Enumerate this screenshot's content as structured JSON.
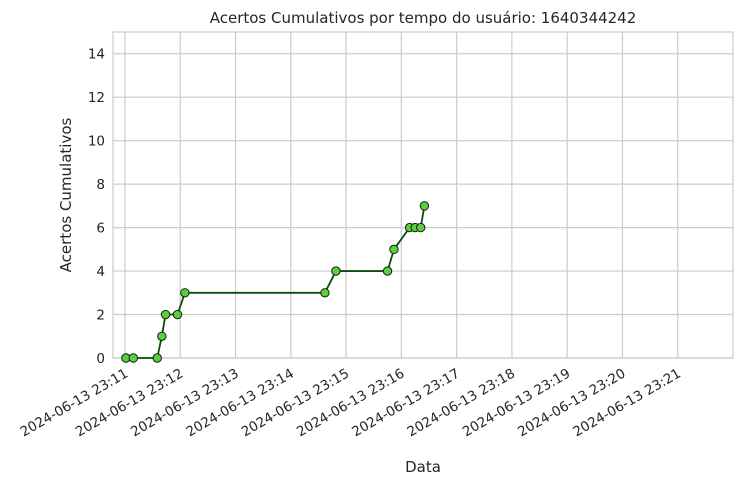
{
  "chart_data": {
    "type": "line",
    "title": "Acertos Cumulativos por tempo do usuário: 1640344242",
    "xlabel": "Data",
    "ylabel": "Acertos Cumulativos",
    "ylim": [
      0,
      15
    ],
    "yticks": [
      0,
      2,
      4,
      6,
      8,
      10,
      12,
      14
    ],
    "xlim": [
      "2024-06-13 23:10:47",
      "2024-06-13 23:22:00"
    ],
    "xticks": [
      "2024-06-13 23:11",
      "2024-06-13 23:12",
      "2024-06-13 23:13",
      "2024-06-13 23:14",
      "2024-06-13 23:15",
      "2024-06-13 23:16",
      "2024-06-13 23:17",
      "2024-06-13 23:18",
      "2024-06-13 23:19",
      "2024-06-13 23:20",
      "2024-06-13 23:21"
    ],
    "grid": true,
    "series": [
      {
        "line_color": "#0b4d0b",
        "marker_color": "#5ad13a",
        "marker_edge": "#1a1a1a",
        "points": [
          {
            "x": "2024-06-13 23:11:01",
            "y": 0
          },
          {
            "x": "2024-06-13 23:11:09",
            "y": 0
          },
          {
            "x": "2024-06-13 23:11:35",
            "y": 0
          },
          {
            "x": "2024-06-13 23:11:40",
            "y": 1
          },
          {
            "x": "2024-06-13 23:11:44",
            "y": 2
          },
          {
            "x": "2024-06-13 23:11:57",
            "y": 2
          },
          {
            "x": "2024-06-13 23:12:05",
            "y": 3
          },
          {
            "x": "2024-06-13 23:14:37",
            "y": 3
          },
          {
            "x": "2024-06-13 23:14:49",
            "y": 4
          },
          {
            "x": "2024-06-13 23:15:45",
            "y": 4
          },
          {
            "x": "2024-06-13 23:15:52",
            "y": 5
          },
          {
            "x": "2024-06-13 23:16:09",
            "y": 6
          },
          {
            "x": "2024-06-13 23:16:15",
            "y": 6
          },
          {
            "x": "2024-06-13 23:16:21",
            "y": 6
          },
          {
            "x": "2024-06-13 23:16:25",
            "y": 7
          }
        ]
      }
    ]
  }
}
